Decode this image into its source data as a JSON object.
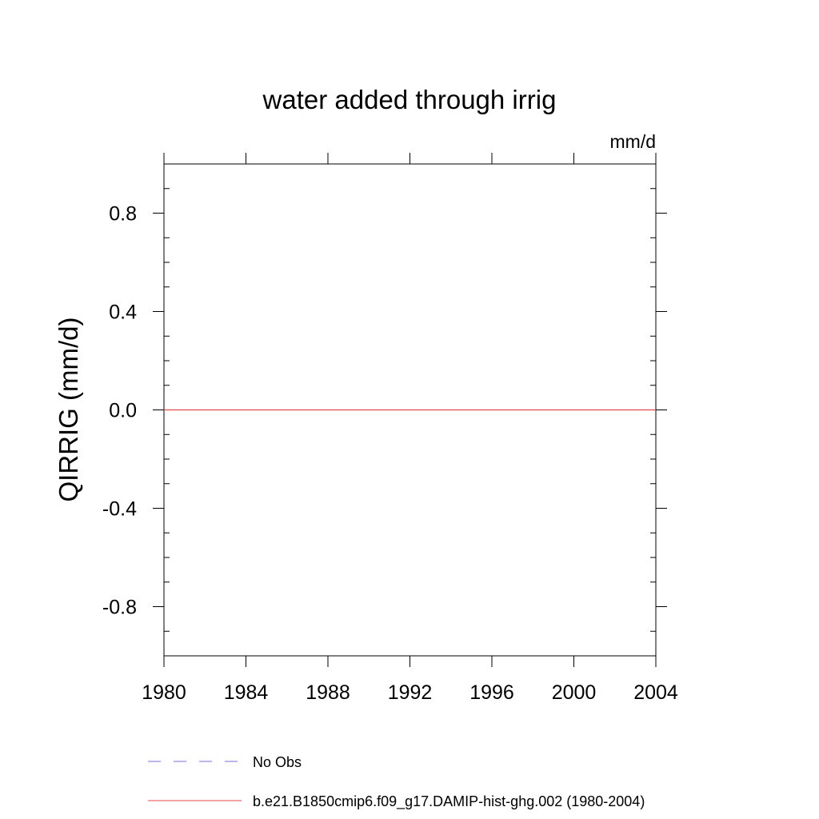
{
  "chart_data": {
    "type": "line",
    "title": "water added through irrig",
    "units_label": "mm/d",
    "ylabel": "QIRRIG  (mm/d)",
    "xlabel": "",
    "xlim": [
      1980,
      2004
    ],
    "ylim": [
      -1.0,
      1.0
    ],
    "x_ticks": [
      1980,
      1984,
      1988,
      1992,
      1996,
      2000,
      2004
    ],
    "x_tick_labels": [
      "1980",
      "1984",
      "1988",
      "1992",
      "1996",
      "2000",
      "2004"
    ],
    "y_ticks": [
      -0.8,
      -0.4,
      0.0,
      0.4,
      0.8
    ],
    "y_tick_labels": [
      "-0.8",
      "-0.4",
      "0.0",
      "0.4",
      "0.8"
    ],
    "y_minor_step": 0.1,
    "x_minor_step": 1,
    "grid": false,
    "legend_position": "bottom",
    "series": [
      {
        "name": "No Obs",
        "color": "#7b6fd0",
        "dash": "dashed",
        "x": [],
        "values": []
      },
      {
        "name": "b.e21.B1850cmip6.f09_g17.DAMIP-hist-ghg.002 (1980-2004)",
        "color": "#e8474b",
        "dash": "solid",
        "x": [
          1980,
          2004
        ],
        "values": [
          0.0,
          0.0
        ]
      }
    ]
  }
}
